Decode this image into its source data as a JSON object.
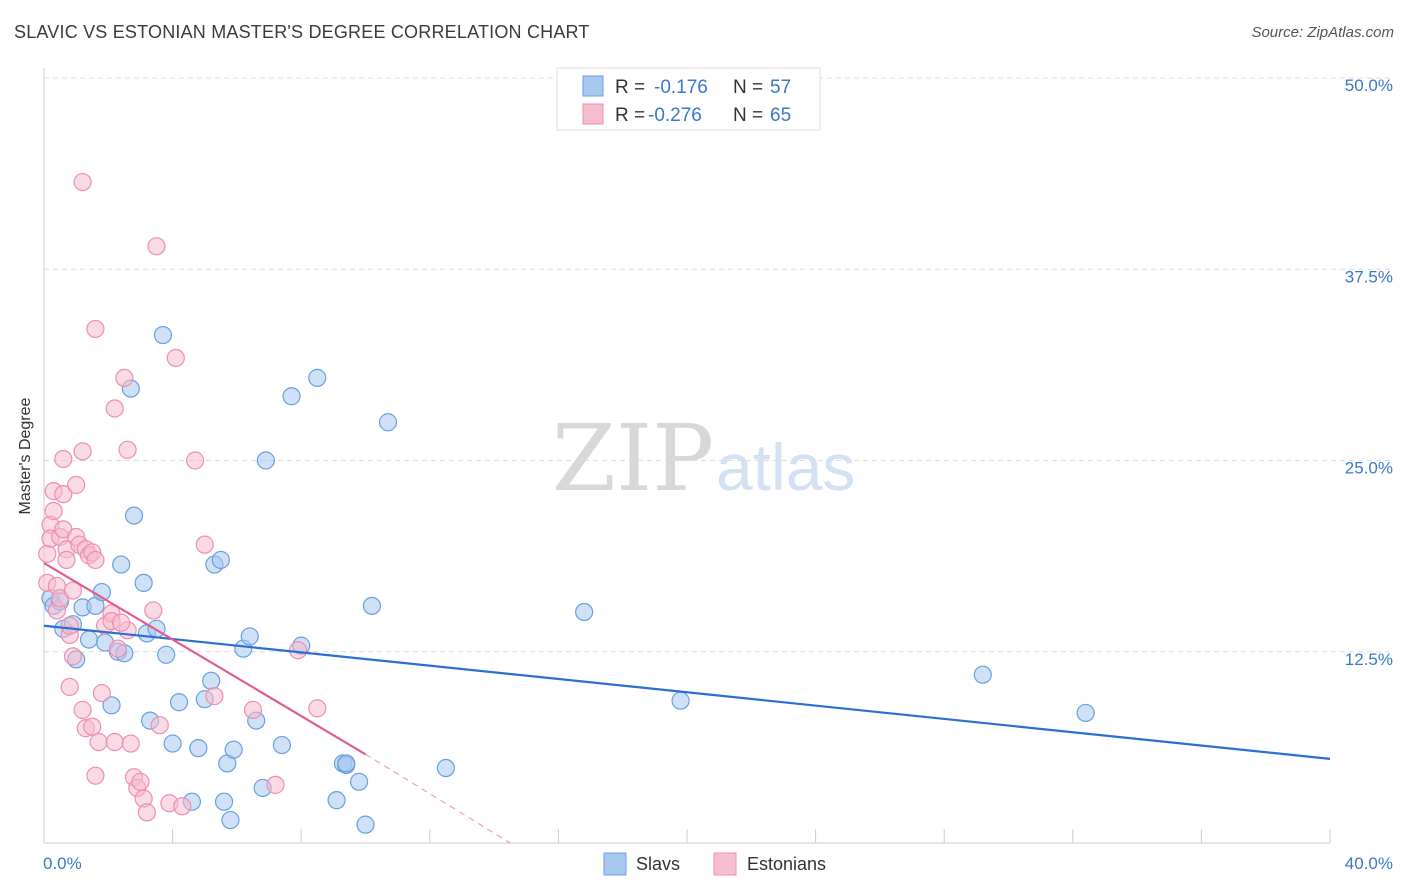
{
  "chart_data": {
    "type": "scatter",
    "title": "SLAVIC VS ESTONIAN MASTER'S DEGREE CORRELATION CHART",
    "source": "Source: ZipAtlas.com",
    "ylabel": "Master's Degree",
    "xlim": [
      0,
      40
    ],
    "ylim": [
      0,
      50
    ],
    "x_tick_labels": [
      "0.0%",
      "40.0%"
    ],
    "y_ticks": [
      12.5,
      25.0,
      37.5,
      50.0
    ],
    "y_tick_labels": [
      "12.5%",
      "25.0%",
      "37.5%",
      "50.0%"
    ],
    "legend": {
      "r_label": "R =",
      "n_label": "N =",
      "entries": [
        {
          "r": "-0.176",
          "n": "57"
        },
        {
          "r": "-0.276",
          "n": "65"
        }
      ]
    },
    "watermark": {
      "zip": "ZIP",
      "atlas": "atlas"
    },
    "series": [
      {
        "name": "Slavs",
        "color": "#a8c8f0",
        "stroke": "#6a9fde",
        "line_color": "#2a6fd1",
        "trend": {
          "x0": 0,
          "y0": 14.2,
          "x1": 40,
          "y1": 5.5
        },
        "points": [
          [
            0.2,
            16.0
          ],
          [
            0.3,
            15.5
          ],
          [
            0.5,
            15.8
          ],
          [
            0.6,
            14.0
          ],
          [
            0.9,
            14.3
          ],
          [
            1.0,
            12.0
          ],
          [
            1.2,
            15.4
          ],
          [
            1.4,
            13.3
          ],
          [
            1.6,
            15.5
          ],
          [
            1.8,
            16.4
          ],
          [
            1.9,
            13.1
          ],
          [
            2.1,
            9.0
          ],
          [
            2.3,
            12.5
          ],
          [
            2.4,
            18.2
          ],
          [
            2.5,
            12.4
          ],
          [
            2.7,
            29.7
          ],
          [
            2.8,
            21.4
          ],
          [
            3.1,
            17.0
          ],
          [
            3.2,
            13.7
          ],
          [
            3.3,
            8.0
          ],
          [
            3.5,
            14.0
          ],
          [
            3.7,
            33.2
          ],
          [
            3.8,
            12.3
          ],
          [
            4.0,
            6.5
          ],
          [
            4.2,
            9.2
          ],
          [
            4.6,
            2.7
          ],
          [
            4.8,
            6.2
          ],
          [
            5.0,
            9.4
          ],
          [
            5.2,
            10.6
          ],
          [
            5.3,
            18.2
          ],
          [
            5.5,
            18.5
          ],
          [
            5.6,
            2.7
          ],
          [
            5.7,
            5.2
          ],
          [
            5.8,
            1.5
          ],
          [
            5.9,
            6.1
          ],
          [
            6.2,
            12.7
          ],
          [
            6.4,
            13.5
          ],
          [
            6.6,
            8.0
          ],
          [
            6.8,
            3.6
          ],
          [
            6.9,
            25.0
          ],
          [
            7.4,
            6.4
          ],
          [
            7.7,
            29.2
          ],
          [
            8.0,
            12.9
          ],
          [
            8.5,
            30.4
          ],
          [
            9.1,
            2.8
          ],
          [
            9.3,
            5.2
          ],
          [
            9.4,
            5.1
          ],
          [
            9.8,
            4.0
          ],
          [
            10.0,
            1.2
          ],
          [
            10.2,
            15.5
          ],
          [
            10.7,
            27.5
          ],
          [
            9.4,
            5.2
          ],
          [
            12.5,
            4.9
          ],
          [
            16.8,
            15.1
          ],
          [
            19.8,
            9.3
          ],
          [
            29.2,
            11.0
          ],
          [
            32.4,
            8.5
          ]
        ]
      },
      {
        "name": "Estonians",
        "color": "#f6bcd0",
        "stroke": "#ee8fb1",
        "line_color": "#e25d8d",
        "trend": {
          "x0": 0,
          "y0": 18.3,
          "x1": 10,
          "y1": 5.8
        },
        "trend_dash": {
          "x0": 10,
          "y0": 5.8,
          "x1": 14.5,
          "y1": 0
        },
        "points": [
          [
            0.1,
            17.0
          ],
          [
            0.1,
            18.9
          ],
          [
            0.2,
            20.8
          ],
          [
            0.2,
            19.9
          ],
          [
            0.3,
            23.0
          ],
          [
            0.3,
            21.7
          ],
          [
            0.4,
            16.8
          ],
          [
            0.4,
            15.2
          ],
          [
            0.5,
            16.0
          ],
          [
            0.5,
            20.0
          ],
          [
            0.6,
            22.8
          ],
          [
            0.6,
            20.5
          ],
          [
            0.6,
            25.1
          ],
          [
            0.7,
            19.2
          ],
          [
            0.7,
            18.5
          ],
          [
            0.8,
            13.6
          ],
          [
            0.8,
            14.2
          ],
          [
            0.8,
            10.2
          ],
          [
            0.9,
            16.5
          ],
          [
            0.9,
            12.2
          ],
          [
            1.0,
            20.0
          ],
          [
            1.0,
            23.4
          ],
          [
            1.1,
            19.5
          ],
          [
            1.2,
            25.6
          ],
          [
            1.2,
            8.7
          ],
          [
            1.3,
            19.2
          ],
          [
            1.3,
            7.5
          ],
          [
            1.4,
            18.8
          ],
          [
            1.5,
            7.6
          ],
          [
            1.5,
            19.0
          ],
          [
            1.6,
            4.4
          ],
          [
            1.6,
            18.5
          ],
          [
            1.7,
            6.6
          ],
          [
            1.8,
            9.8
          ],
          [
            1.9,
            14.2
          ],
          [
            2.1,
            15.0
          ],
          [
            2.1,
            14.5
          ],
          [
            2.2,
            28.4
          ],
          [
            2.2,
            6.6
          ],
          [
            2.3,
            12.7
          ],
          [
            2.5,
            30.4
          ],
          [
            2.6,
            25.7
          ],
          [
            2.6,
            13.9
          ],
          [
            2.7,
            6.5
          ],
          [
            2.8,
            4.3
          ],
          [
            2.9,
            3.6
          ],
          [
            3.0,
            4.0
          ],
          [
            3.1,
            2.9
          ],
          [
            3.2,
            2.0
          ],
          [
            3.4,
            15.2
          ],
          [
            3.5,
            39.0
          ],
          [
            3.6,
            7.7
          ],
          [
            3.9,
            2.6
          ],
          [
            4.1,
            31.7
          ],
          [
            4.3,
            2.4
          ],
          [
            4.7,
            25.0
          ],
          [
            5.0,
            19.5
          ],
          [
            5.3,
            9.6
          ],
          [
            6.5,
            8.7
          ],
          [
            7.2,
            3.8
          ],
          [
            7.9,
            12.6
          ],
          [
            8.5,
            8.8
          ],
          [
            1.2,
            43.2
          ],
          [
            1.6,
            33.6
          ],
          [
            2.4,
            14.4
          ]
        ]
      }
    ]
  }
}
